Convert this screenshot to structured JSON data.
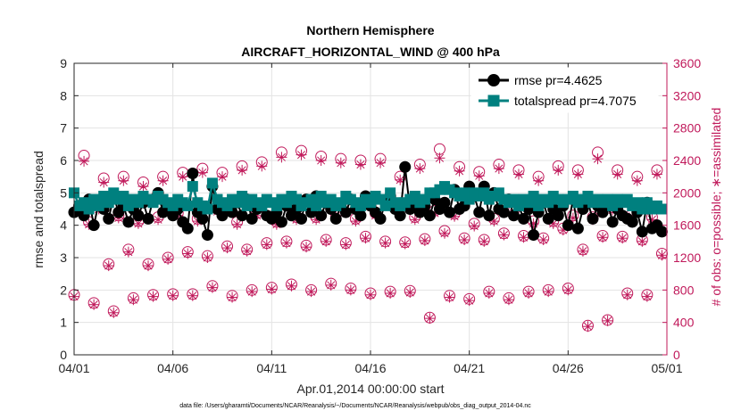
{
  "chart_data": {
    "type": "line",
    "title_line1": "Northern Hemisphere",
    "title_line2": "AIRCRAFT_HORIZONTAL_WIND @ 400 hPa",
    "xlabel": "Apr.01,2014 00:00:00 start",
    "ylabel_left": "rmse and totalspread",
    "ylabel_right": "# of obs: o=possible; ∗=assimilated",
    "xlim": [
      0,
      30
    ],
    "ylim_left": [
      0,
      9
    ],
    "ylim_right": [
      0,
      3600
    ],
    "x_ticks": [
      0,
      5,
      10,
      15,
      20,
      25,
      30
    ],
    "x_tick_labels": [
      "04/01",
      "04/06",
      "04/11",
      "04/16",
      "04/21",
      "04/26",
      "05/01"
    ],
    "y_ticks_left": [
      "0",
      "1",
      "2",
      "3",
      "4",
      "5",
      "6",
      "7",
      "8",
      "9"
    ],
    "y_ticks_right": [
      "0",
      "400",
      "800",
      "1200",
      "1600",
      "2000",
      "2400",
      "2800",
      "3200",
      "3600"
    ],
    "grid": true,
    "legend_position": "top-right",
    "footnote": "data file: /Users/gharamti/Documents/NCAR/Reanalysis/~/Documents/NCAR/Reanalysis/webpub/obs_diag_output_2014-04.nc",
    "colors": {
      "rmse": "#000000",
      "totalspread": "#00807f",
      "obs": "#c0185a",
      "axis": "#262626"
    },
    "series": [
      {
        "name": "rmse",
        "legend_label": "rmse pr=4.4625",
        "color": "#000000",
        "marker": "circle",
        "x": [
          0.0,
          0.25,
          0.5,
          0.75,
          1.0,
          1.25,
          1.5,
          1.75,
          2.0,
          2.25,
          2.5,
          2.75,
          3.0,
          3.25,
          3.5,
          3.75,
          4.0,
          4.25,
          4.5,
          4.75,
          5.0,
          5.25,
          5.5,
          5.75,
          6.0,
          6.25,
          6.5,
          6.75,
          7.0,
          7.25,
          7.5,
          7.75,
          8.0,
          8.25,
          8.5,
          8.75,
          9.0,
          9.25,
          9.5,
          9.75,
          10.0,
          10.25,
          10.5,
          10.75,
          11.0,
          11.25,
          11.5,
          11.75,
          12.0,
          12.25,
          12.5,
          12.75,
          13.0,
          13.25,
          13.5,
          13.75,
          14.0,
          14.25,
          14.5,
          14.75,
          15.0,
          15.25,
          15.5,
          15.75,
          16.0,
          16.25,
          16.5,
          16.75,
          17.0,
          17.25,
          17.5,
          17.75,
          18.0,
          18.25,
          18.5,
          18.75,
          19.0,
          19.25,
          19.5,
          19.75,
          20.0,
          20.25,
          20.5,
          20.75,
          21.0,
          21.25,
          21.5,
          21.75,
          22.0,
          22.25,
          22.5,
          22.75,
          23.0,
          23.25,
          23.5,
          23.75,
          24.0,
          24.25,
          24.5,
          24.75,
          25.0,
          25.25,
          25.5,
          25.75,
          26.0,
          26.25,
          26.5,
          26.75,
          27.0,
          27.25,
          27.5,
          27.75,
          28.0,
          28.25,
          28.5,
          28.75,
          29.0,
          29.25,
          29.5,
          29.75
        ],
        "values": [
          4.4,
          4.6,
          4.3,
          4.8,
          4.0,
          4.7,
          4.5,
          4.2,
          4.9,
          4.4,
          4.6,
          4.1,
          4.5,
          4.3,
          4.7,
          4.2,
          4.8,
          5.0,
          4.4,
          4.6,
          4.3,
          4.5,
          4.1,
          3.9,
          5.6,
          4.4,
          4.2,
          3.7,
          5.2,
          4.5,
          4.3,
          4.6,
          4.4,
          4.7,
          4.3,
          4.8,
          4.2,
          4.5,
          4.6,
          4.3,
          4.2,
          4.4,
          4.1,
          4.6,
          4.3,
          4.5,
          4.2,
          4.8,
          4.4,
          4.9,
          4.3,
          4.7,
          4.5,
          4.2,
          4.6,
          4.4,
          4.8,
          4.5,
          4.3,
          4.9,
          4.6,
          4.4,
          4.2,
          4.7,
          4.9,
          4.5,
          4.3,
          5.8,
          4.5,
          4.7,
          4.4,
          4.6,
          4.3,
          4.8,
          4.5,
          4.7,
          4.4,
          5.1,
          4.5,
          4.6,
          5.2,
          4.9,
          4.4,
          5.2,
          4.3,
          5.0,
          4.5,
          4.4,
          4.8,
          4.3,
          4.6,
          4.2,
          4.5,
          3.7,
          4.4,
          4.7,
          4.2,
          4.5,
          4.3,
          4.6,
          4.0,
          4.8,
          3.9,
          4.5,
          4.7,
          4.2,
          4.6,
          4.4,
          4.7,
          4.1,
          4.5,
          4.3,
          4.2,
          4.1,
          4.4,
          3.8,
          4.7,
          3.9,
          4.0,
          3.8
        ]
      },
      {
        "name": "totalspread",
        "legend_label": "totalspread pr=4.7075",
        "color": "#00807f",
        "marker": "square",
        "x": [
          0.0,
          0.25,
          0.5,
          0.75,
          1.0,
          1.25,
          1.5,
          1.75,
          2.0,
          2.25,
          2.5,
          2.75,
          3.0,
          3.25,
          3.5,
          3.75,
          4.0,
          4.25,
          4.5,
          4.75,
          5.0,
          5.25,
          5.5,
          5.75,
          6.0,
          6.25,
          6.5,
          6.75,
          7.0,
          7.25,
          7.5,
          7.75,
          8.0,
          8.25,
          8.5,
          8.75,
          9.0,
          9.25,
          9.5,
          9.75,
          10.0,
          10.25,
          10.5,
          10.75,
          11.0,
          11.25,
          11.5,
          11.75,
          12.0,
          12.25,
          12.5,
          12.75,
          13.0,
          13.25,
          13.5,
          13.75,
          14.0,
          14.25,
          14.5,
          14.75,
          15.0,
          15.25,
          15.5,
          15.75,
          16.0,
          16.25,
          16.5,
          16.75,
          17.0,
          17.25,
          17.5,
          17.75,
          18.0,
          18.25,
          18.5,
          18.75,
          19.0,
          19.25,
          19.5,
          19.75,
          20.0,
          20.25,
          20.5,
          20.75,
          21.0,
          21.25,
          21.5,
          21.75,
          22.0,
          22.25,
          22.5,
          22.75,
          23.0,
          23.25,
          23.5,
          23.75,
          24.0,
          24.25,
          24.5,
          24.75,
          25.0,
          25.25,
          25.5,
          25.75,
          26.0,
          26.25,
          26.5,
          26.75,
          27.0,
          27.25,
          27.5,
          27.75,
          28.0,
          28.25,
          28.5,
          28.75,
          29.0,
          29.25,
          29.5,
          29.75
        ],
        "values": [
          5.0,
          4.6,
          4.7,
          4.5,
          4.8,
          4.6,
          4.9,
          4.7,
          5.0,
          4.8,
          4.9,
          4.6,
          4.8,
          4.7,
          4.9,
          4.8,
          4.7,
          4.9,
          4.8,
          4.7,
          4.6,
          4.8,
          4.7,
          4.6,
          5.2,
          4.7,
          4.6,
          4.5,
          5.3,
          4.8,
          4.7,
          4.6,
          4.8,
          4.7,
          4.9,
          4.6,
          4.8,
          4.7,
          4.6,
          4.8,
          4.7,
          4.6,
          4.8,
          4.7,
          4.9,
          4.8,
          4.6,
          4.7,
          4.8,
          4.6,
          4.9,
          4.7,
          4.8,
          4.6,
          4.7,
          4.9,
          4.8,
          4.7,
          4.6,
          4.8,
          4.7,
          4.9,
          4.8,
          4.6,
          5.0,
          4.7,
          4.6,
          4.7,
          4.8,
          4.9,
          4.7,
          4.8,
          5.0,
          5.0,
          5.1,
          5.2,
          5.1,
          5.0,
          4.9,
          5.0,
          4.8,
          5.0,
          4.9,
          5.0,
          4.8,
          4.9,
          5.0,
          4.8,
          4.7,
          4.8,
          4.6,
          4.8,
          4.7,
          4.9,
          4.6,
          4.8,
          4.7,
          4.9,
          4.8,
          4.7,
          4.8,
          4.9,
          4.7,
          4.8,
          4.9,
          4.7,
          4.8,
          4.7,
          4.8,
          4.6,
          4.8,
          4.7,
          4.8,
          4.6,
          4.7,
          4.5,
          4.7,
          4.5,
          4.6,
          4.5
        ]
      },
      {
        "name": "possible_obs",
        "color": "#c0185a",
        "marker": "open-circle",
        "axis": "right",
        "x": [
          0.0,
          0.25,
          0.5,
          0.75,
          1.0,
          1.25,
          1.5,
          1.75,
          2.0,
          2.25,
          2.5,
          2.75,
          3.0,
          3.25,
          3.5,
          3.75,
          4.0,
          4.25,
          4.5,
          4.75,
          5.0,
          5.25,
          5.5,
          5.75,
          6.0,
          6.25,
          6.5,
          6.75,
          7.0,
          7.25,
          7.5,
          7.75,
          8.0,
          8.25,
          8.5,
          8.75,
          9.0,
          9.25,
          9.5,
          9.75,
          10.0,
          10.25,
          10.5,
          10.75,
          11.0,
          11.25,
          11.5,
          11.75,
          12.0,
          12.25,
          12.5,
          12.75,
          13.0,
          13.25,
          13.5,
          13.75,
          14.0,
          14.25,
          14.5,
          14.75,
          15.0,
          15.25,
          15.5,
          15.75,
          16.0,
          16.25,
          16.5,
          16.75,
          17.0,
          17.25,
          17.5,
          17.75,
          18.0,
          18.25,
          18.5,
          18.75,
          19.0,
          19.25,
          19.5,
          19.75,
          20.0,
          20.25,
          20.5,
          20.75,
          21.0,
          21.25,
          21.5,
          21.75,
          22.0,
          22.25,
          22.5,
          22.75,
          23.0,
          23.25,
          23.5,
          23.75,
          24.0,
          24.25,
          24.5,
          24.75,
          25.0,
          25.25,
          25.5,
          25.75,
          26.0,
          26.25,
          26.5,
          26.75,
          27.0,
          27.25,
          27.5,
          27.75,
          28.0,
          28.25,
          28.5,
          28.75,
          29.0,
          29.25,
          29.5,
          29.75
        ],
        "values": [
          740,
          1820,
          2460,
          1640,
          640,
          1840,
          2180,
          1120,
          540,
          1720,
          2200,
          1300,
          700,
          1650,
          2130,
          1120,
          740,
          1700,
          2200,
          1200,
          750,
          1750,
          2250,
          1270,
          750,
          1680,
          2300,
          1220,
          850,
          1800,
          2250,
          1340,
          730,
          1640,
          2330,
          1300,
          800,
          1750,
          2380,
          1380,
          830,
          1640,
          2500,
          1400,
          870,
          1700,
          2520,
          1350,
          800,
          1700,
          2450,
          1420,
          880,
          1740,
          2420,
          1380,
          820,
          1680,
          2400,
          1460,
          760,
          1750,
          2420,
          1400,
          780,
          1830,
          2200,
          1390,
          790,
          1700,
          2350,
          1430,
          460,
          1780,
          2540,
          1530,
          730,
          1740,
          2320,
          1440,
          690,
          1620,
          2260,
          1420,
          780,
          1680,
          2350,
          1500,
          700,
          1780,
          2280,
          1470,
          780,
          1650,
          2200,
          1440,
          800,
          1650,
          2330,
          1560,
          820,
          1720,
          2280,
          1300,
          360,
          1700,
          2500,
          1470,
          430,
          1820,
          2280,
          1460,
          760,
          1740,
          2200,
          1420,
          740,
          1700,
          2280,
          1250
        ]
      },
      {
        "name": "assimilated_obs",
        "color": "#c0185a",
        "marker": "asterisk",
        "axis": "right",
        "x": [
          0.0,
          0.25,
          0.5,
          0.75,
          1.0,
          1.25,
          1.5,
          1.75,
          2.0,
          2.25,
          2.5,
          2.75,
          3.0,
          3.25,
          3.5,
          3.75,
          4.0,
          4.25,
          4.5,
          4.75,
          5.0,
          5.25,
          5.5,
          5.75,
          6.0,
          6.25,
          6.5,
          6.75,
          7.0,
          7.25,
          7.5,
          7.75,
          8.0,
          8.25,
          8.5,
          8.75,
          9.0,
          9.25,
          9.5,
          9.75,
          10.0,
          10.25,
          10.5,
          10.75,
          11.0,
          11.25,
          11.5,
          11.75,
          12.0,
          12.25,
          12.5,
          12.75,
          13.0,
          13.25,
          13.5,
          13.75,
          14.0,
          14.25,
          14.5,
          14.75,
          15.0,
          15.25,
          15.5,
          15.75,
          16.0,
          16.25,
          16.5,
          16.75,
          17.0,
          17.25,
          17.5,
          17.75,
          18.0,
          18.25,
          18.5,
          18.75,
          19.0,
          19.25,
          19.5,
          19.75,
          20.0,
          20.25,
          20.5,
          20.75,
          21.0,
          21.25,
          21.5,
          21.75,
          22.0,
          22.25,
          22.5,
          22.75,
          23.0,
          23.25,
          23.5,
          23.75,
          24.0,
          24.25,
          24.5,
          24.75,
          25.0,
          25.25,
          25.5,
          25.75,
          26.0,
          26.25,
          26.5,
          26.75,
          27.0,
          27.25,
          27.5,
          27.75,
          28.0,
          28.25,
          28.5,
          28.75,
          29.0,
          29.25,
          29.5,
          29.75
        ],
        "values": [
          720,
          1780,
          2390,
          1610,
          620,
          1800,
          2130,
          1100,
          520,
          1690,
          2150,
          1270,
          680,
          1620,
          2080,
          1100,
          720,
          1670,
          2150,
          1180,
          730,
          1720,
          2200,
          1250,
          730,
          1650,
          2250,
          1200,
          830,
          1770,
          2200,
          1320,
          710,
          1610,
          2280,
          1280,
          780,
          1720,
          2330,
          1360,
          810,
          1610,
          2440,
          1380,
          850,
          1670,
          2470,
          1330,
          780,
          1670,
          2400,
          1400,
          860,
          1710,
          2370,
          1360,
          800,
          1650,
          2350,
          1440,
          740,
          1720,
          2370,
          1380,
          760,
          1800,
          2160,
          1370,
          770,
          1670,
          2300,
          1410,
          450,
          1750,
          2430,
          1500,
          710,
          1710,
          2270,
          1420,
          670,
          1590,
          2210,
          1400,
          760,
          1650,
          2300,
          1480,
          680,
          1750,
          2230,
          1450,
          760,
          1620,
          2150,
          1420,
          780,
          1620,
          2280,
          1540,
          800,
          1690,
          2230,
          1280,
          350,
          1670,
          2420,
          1450,
          420,
          1790,
          2230,
          1440,
          740,
          1710,
          2150,
          1400,
          720,
          1670,
          2230,
          1230
        ]
      }
    ]
  }
}
